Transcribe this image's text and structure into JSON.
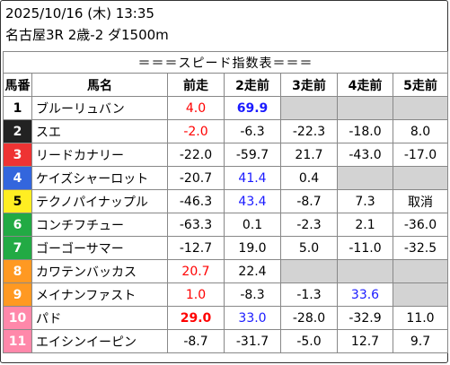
{
  "header": {
    "datetime": "2025/10/16 (木) 13:35",
    "race": "名古屋3R 2歳-2 ダ1500m"
  },
  "table": {
    "title": "＝＝＝スピード指数表＝＝＝",
    "columns": [
      "馬番",
      "馬名",
      "前走",
      "2走前",
      "3走前",
      "4走前",
      "5走前"
    ],
    "rows": [
      {
        "num": "1",
        "name": "ブルーリュバン",
        "cells": [
          {
            "v": "4.0",
            "c": "red"
          },
          {
            "v": "69.9",
            "c": "best-blue"
          },
          {
            "v": "",
            "c": "blank"
          },
          {
            "v": "",
            "c": "blank"
          },
          {
            "v": "",
            "c": "blank"
          }
        ]
      },
      {
        "num": "2",
        "name": "スエ",
        "cells": [
          {
            "v": "-2.0",
            "c": "red"
          },
          {
            "v": "-6.3",
            "c": ""
          },
          {
            "v": "-22.3",
            "c": ""
          },
          {
            "v": "-18.0",
            "c": ""
          },
          {
            "v": "8.0",
            "c": ""
          }
        ]
      },
      {
        "num": "3",
        "name": "リードカナリー",
        "cells": [
          {
            "v": "-22.0",
            "c": ""
          },
          {
            "v": "-59.7",
            "c": ""
          },
          {
            "v": "21.7",
            "c": ""
          },
          {
            "v": "-43.0",
            "c": ""
          },
          {
            "v": "-17.0",
            "c": ""
          }
        ]
      },
      {
        "num": "4",
        "name": "ケイズシャーロット",
        "cells": [
          {
            "v": "-20.7",
            "c": ""
          },
          {
            "v": "41.4",
            "c": "blue"
          },
          {
            "v": "0.4",
            "c": ""
          },
          {
            "v": "",
            "c": "blank"
          },
          {
            "v": "",
            "c": "blank"
          }
        ]
      },
      {
        "num": "5",
        "name": "テクノパイナップル",
        "cells": [
          {
            "v": "-46.3",
            "c": ""
          },
          {
            "v": "43.4",
            "c": "blue"
          },
          {
            "v": "-8.7",
            "c": ""
          },
          {
            "v": "7.3",
            "c": ""
          },
          {
            "v": "取消",
            "c": ""
          }
        ]
      },
      {
        "num": "6",
        "name": "コンチフチュー",
        "cells": [
          {
            "v": "-63.3",
            "c": ""
          },
          {
            "v": "0.1",
            "c": ""
          },
          {
            "v": "-2.3",
            "c": ""
          },
          {
            "v": "2.1",
            "c": ""
          },
          {
            "v": "-36.0",
            "c": ""
          }
        ]
      },
      {
        "num": "7",
        "name": "ゴーゴーサマー",
        "cells": [
          {
            "v": "-12.7",
            "c": ""
          },
          {
            "v": "19.0",
            "c": ""
          },
          {
            "v": "5.0",
            "c": ""
          },
          {
            "v": "-11.0",
            "c": ""
          },
          {
            "v": "-32.5",
            "c": ""
          }
        ]
      },
      {
        "num": "8",
        "name": "カワテンバッカス",
        "cells": [
          {
            "v": "20.7",
            "c": "red"
          },
          {
            "v": "22.4",
            "c": ""
          },
          {
            "v": "",
            "c": "blank"
          },
          {
            "v": "",
            "c": "blank"
          },
          {
            "v": "",
            "c": "blank"
          }
        ]
      },
      {
        "num": "9",
        "name": "メイナンファスト",
        "cells": [
          {
            "v": "1.0",
            "c": "red"
          },
          {
            "v": "-8.3",
            "c": ""
          },
          {
            "v": "-1.3",
            "c": ""
          },
          {
            "v": "33.6",
            "c": "blue"
          },
          {
            "v": "",
            "c": "blank"
          }
        ]
      },
      {
        "num": "10",
        "name": "パド",
        "cells": [
          {
            "v": "29.0",
            "c": "best-red"
          },
          {
            "v": "33.0",
            "c": "blue"
          },
          {
            "v": "-28.0",
            "c": ""
          },
          {
            "v": "-32.9",
            "c": ""
          },
          {
            "v": "11.0",
            "c": ""
          }
        ]
      },
      {
        "num": "11",
        "name": "エイシンイーピン",
        "cells": [
          {
            "v": "-8.7",
            "c": ""
          },
          {
            "v": "-31.7",
            "c": ""
          },
          {
            "v": "-5.0",
            "c": ""
          },
          {
            "v": "12.7",
            "c": ""
          },
          {
            "v": "9.7",
            "c": ""
          }
        ]
      }
    ],
    "post_colors": [
      {
        "bg": "#ffffff",
        "fg": "#000000"
      },
      {
        "bg": "#222222",
        "fg": "#ffffff"
      },
      {
        "bg": "#ee3333",
        "fg": "#ffffff"
      },
      {
        "bg": "#3366dd",
        "fg": "#ffffff"
      },
      {
        "bg": "#ffee22",
        "fg": "#000000"
      },
      {
        "bg": "#22aa44",
        "fg": "#ffffff"
      },
      {
        "bg": "#22aa44",
        "fg": "#ffffff"
      },
      {
        "bg": "#ff9922",
        "fg": "#ffffff"
      },
      {
        "bg": "#ff9922",
        "fg": "#ffffff"
      },
      {
        "bg": "#ff88aa",
        "fg": "#ffffff"
      },
      {
        "bg": "#ff88aa",
        "fg": "#ffffff"
      }
    ]
  }
}
